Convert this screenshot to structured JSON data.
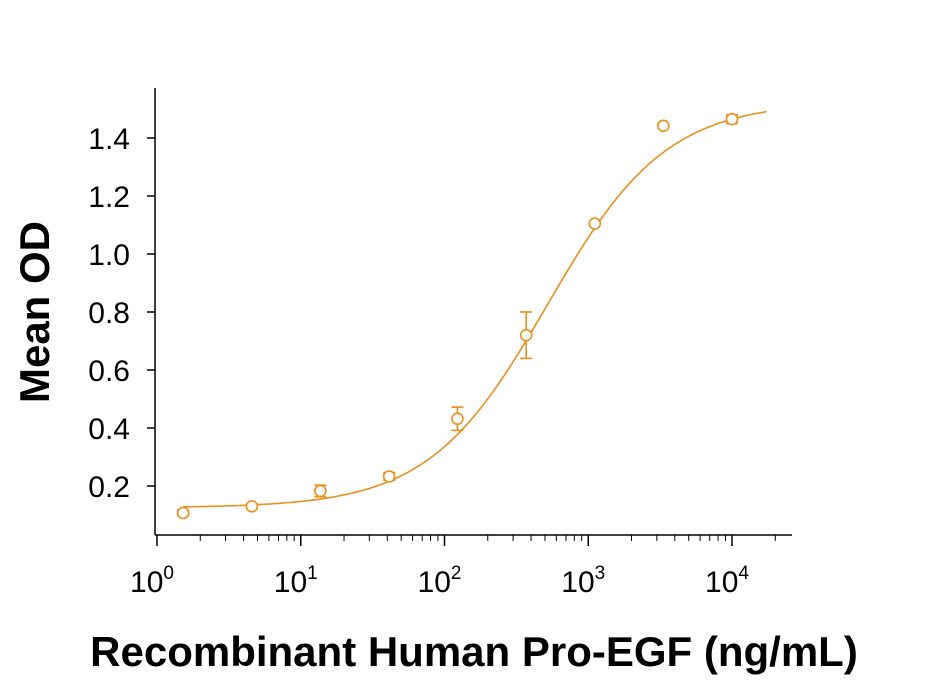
{
  "chart_data": {
    "type": "scatter",
    "xscale": "log",
    "yscale": "linear",
    "xlabel": "Recombinant Human Pro-EGF (ng/mL)",
    "ylabel": "Mean OD",
    "xlim": [
      1,
      18000
    ],
    "ylim": [
      0.08,
      1.55
    ],
    "xticks": [
      {
        "value": 1,
        "base": "10",
        "exp": "0"
      },
      {
        "value": 10,
        "base": "10",
        "exp": "1"
      },
      {
        "value": 100,
        "base": "10",
        "exp": "2"
      },
      {
        "value": 1000,
        "base": "10",
        "exp": "3"
      },
      {
        "value": 10000,
        "base": "10",
        "exp": "4"
      }
    ],
    "yticks": [
      {
        "value": 0.2,
        "label": "0.2"
      },
      {
        "value": 0.4,
        "label": "0.4"
      },
      {
        "value": 0.6,
        "label": "0.6"
      },
      {
        "value": 0.8,
        "label": "0.8"
      },
      {
        "value": 1.0,
        "label": "1.0"
      },
      {
        "value": 1.2,
        "label": "1.2"
      },
      {
        "value": 1.4,
        "label": "1.4"
      }
    ],
    "grid": false,
    "color": "#E8901E",
    "points": [
      {
        "x": 1.52,
        "y": 0.107,
        "err": 0.01
      },
      {
        "x": 4.57,
        "y": 0.13,
        "err": 0.008
      },
      {
        "x": 13.7,
        "y": 0.183,
        "err": 0.02
      },
      {
        "x": 41.2,
        "y": 0.233,
        "err": 0.013
      },
      {
        "x": 123,
        "y": 0.432,
        "err": 0.04
      },
      {
        "x": 370,
        "y": 0.72,
        "err": 0.08
      },
      {
        "x": 1110,
        "y": 1.105,
        "err": 0.005
      },
      {
        "x": 3330,
        "y": 1.442,
        "err": 0.005
      },
      {
        "x": 10000,
        "y": 1.465,
        "err": 0.015
      }
    ],
    "fit": {
      "model": "4PL",
      "bottom": 0.125,
      "top": 1.525,
      "ec50": 520,
      "hill": 1.05,
      "x_range": [
        1.52,
        17500
      ]
    }
  }
}
